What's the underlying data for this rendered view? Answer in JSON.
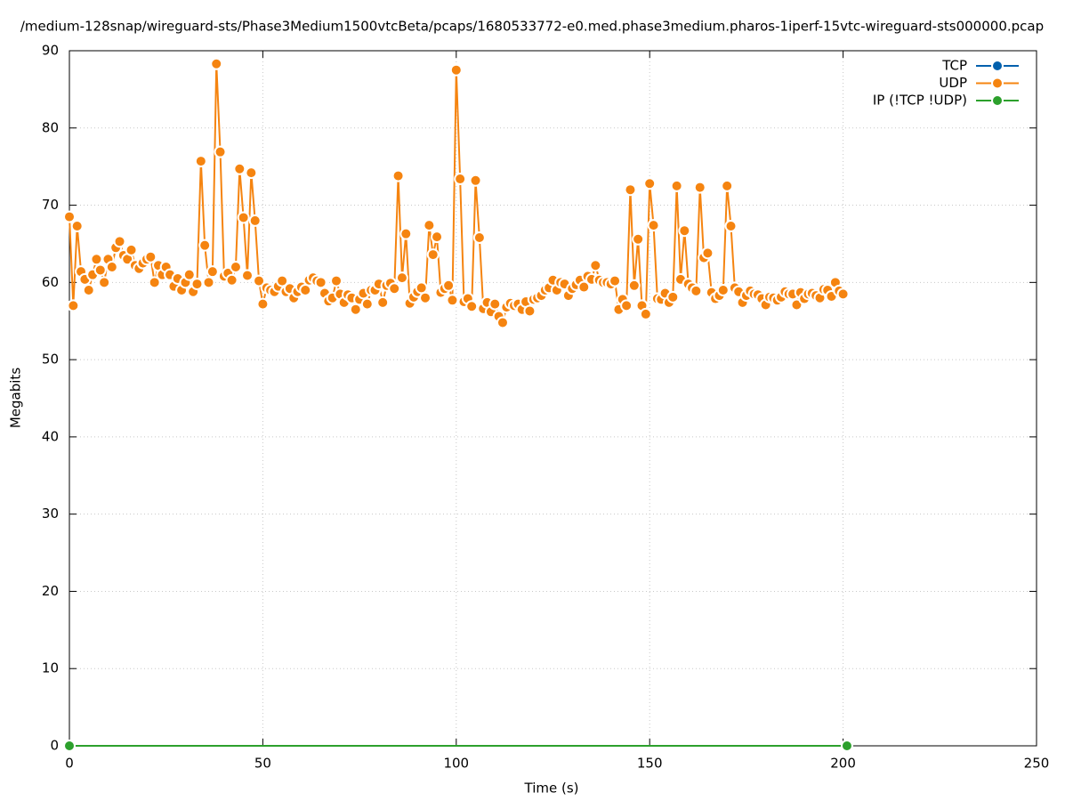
{
  "chart_data": {
    "type": "line",
    "title": "/medium-128snap/wireguard-sts/Phase3Medium1500vtcBeta/pcaps/1680533772-e0.med.phase3medium.pharos-1iperf-15vtc-wireguard-sts000000.pcap",
    "x_label": "Time (s)",
    "y_label": "Megabits",
    "xlim": [
      0,
      250
    ],
    "xticks": [
      0,
      50,
      100,
      150,
      200,
      250
    ],
    "ylim": [
      0,
      90
    ],
    "yticks": [
      0,
      10,
      20,
      30,
      40,
      50,
      60,
      70,
      80,
      90
    ],
    "grid": true,
    "legend": "top-right",
    "series": [
      {
        "name": "TCP",
        "color": "#0060ad",
        "x": [
          0,
          201
        ],
        "values": [
          0,
          0
        ]
      },
      {
        "name": "UDP",
        "color": "#f58410",
        "x": [
          0,
          1,
          2,
          3,
          4,
          5,
          6,
          7,
          8,
          9,
          10,
          11,
          12,
          13,
          14,
          15,
          16,
          17,
          18,
          19,
          20,
          21,
          22,
          23,
          24,
          25,
          26,
          27,
          28,
          29,
          30,
          31,
          32,
          33,
          34,
          35,
          36,
          37,
          38,
          39,
          40,
          41,
          42,
          43,
          44,
          45,
          46,
          47,
          48,
          49,
          50,
          51,
          52,
          53,
          54,
          55,
          56,
          57,
          58,
          59,
          60,
          61,
          62,
          63,
          64,
          65,
          66,
          67,
          68,
          69,
          70,
          71,
          72,
          73,
          74,
          75,
          76,
          77,
          78,
          79,
          80,
          81,
          82,
          83,
          84,
          85,
          86,
          87,
          88,
          89,
          90,
          91,
          92,
          93,
          94,
          95,
          96,
          97,
          98,
          99,
          100,
          101,
          102,
          103,
          104,
          105,
          106,
          107,
          108,
          109,
          110,
          111,
          112,
          113,
          114,
          115,
          116,
          117,
          118,
          119,
          120,
          121,
          122,
          123,
          124,
          125,
          126,
          127,
          128,
          129,
          130,
          131,
          132,
          133,
          134,
          135,
          136,
          137,
          138,
          139,
          140,
          141,
          142,
          143,
          144,
          145,
          146,
          147,
          148,
          149,
          150,
          151,
          152,
          153,
          154,
          155,
          156,
          157,
          158,
          159,
          160,
          161,
          162,
          163,
          164,
          165,
          166,
          167,
          168,
          169,
          170,
          171,
          172,
          173,
          174,
          175,
          176,
          177,
          178,
          179,
          180,
          181,
          182,
          183,
          184,
          185,
          186,
          187,
          188,
          189,
          190,
          191,
          192,
          193,
          194,
          195,
          196,
          197,
          198,
          199,
          200
        ],
        "values": [
          68.5,
          57,
          67.3,
          61.4,
          60.4,
          59,
          61,
          63,
          61.6,
          60,
          63,
          62,
          64.5,
          65.3,
          63.5,
          63,
          64.2,
          62.2,
          61.8,
          62.5,
          63,
          63.3,
          60,
          62.2,
          61,
          62,
          61,
          59.5,
          60.5,
          59,
          60,
          61,
          58.8,
          59.8,
          75.7,
          64.8,
          60,
          61.4,
          88.3,
          76.9,
          60.8,
          61.2,
          60.3,
          62,
          74.7,
          68.4,
          60.9,
          74.2,
          68,
          60.2,
          57.2,
          59.3,
          59,
          58.8,
          59.5,
          60.2,
          58.8,
          59.2,
          58,
          58.8,
          59.4,
          59,
          60.3,
          60.6,
          60.2,
          60,
          58.6,
          57.6,
          58,
          60.2,
          58.5,
          57.4,
          58.4,
          58,
          56.5,
          57.8,
          58.6,
          57.2,
          59,
          59,
          59.8,
          57.4,
          59.6,
          59.9,
          59.2,
          73.8,
          60.6,
          66.3,
          57.3,
          58.1,
          58.8,
          59.3,
          58,
          67.4,
          63.6,
          65.9,
          58.7,
          59.2,
          59.6,
          57.7,
          87.5,
          73.4,
          57.5,
          57.9,
          56.9,
          73.2,
          65.8,
          56.6,
          57.4,
          56.2,
          57.2,
          55.6,
          54.8,
          56.8,
          57.3,
          57,
          57.2,
          56.5,
          57.5,
          56.3,
          57.8,
          58,
          58.3,
          59,
          59.3,
          60.3,
          59,
          60,
          59.8,
          58.3,
          59.2,
          59.7,
          60.3,
          59.4,
          60.8,
          60.4,
          62.2,
          60.3,
          60,
          60,
          59.8,
          60.2,
          56.5,
          57.8,
          57,
          72,
          59.6,
          65.6,
          57,
          55.9,
          72.8,
          67.4,
          57.9,
          57.8,
          58.6,
          57.4,
          58.1,
          72.5,
          60.4,
          66.7,
          59.8,
          59.3,
          58.9,
          72.3,
          63.2,
          63.8,
          58.7,
          57.9,
          58.3,
          59,
          72.5,
          67.3,
          59.3,
          58.8,
          57.4,
          58.3,
          58.9,
          58.5,
          58.4,
          57.9,
          57.1,
          58.1,
          58,
          57.7,
          58.1,
          58.8,
          58.5,
          58.5,
          57.1,
          58.7,
          57.9,
          58.5,
          58.6,
          58.3,
          58,
          59.1,
          59,
          58.2,
          60,
          58.9,
          58.5
        ]
      },
      {
        "name": "IP (!TCP  !UDP)",
        "color": "#2ca02c",
        "x": [
          0,
          201
        ],
        "values": [
          0,
          0
        ]
      }
    ]
  }
}
